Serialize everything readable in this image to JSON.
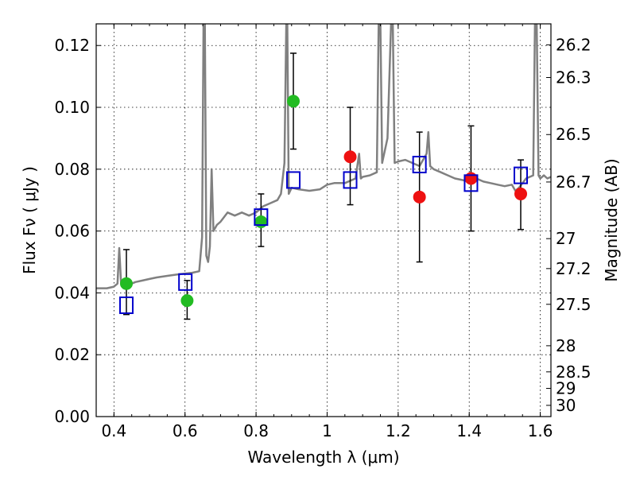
{
  "chart_data": {
    "type": "scatter",
    "title": "",
    "xlabel": "Wavelength  λ (μm)",
    "ylabel": "Flux  Fν  ( μJy )",
    "ylabel_right": "Magnitude (AB)",
    "xlim": [
      0.35,
      1.63
    ],
    "ylim": [
      0.0,
      0.127
    ],
    "grid": true,
    "x_ticks": [
      {
        "value": 0.4,
        "label": "0.4"
      },
      {
        "value": 0.6,
        "label": "0.6"
      },
      {
        "value": 0.8,
        "label": "0.8"
      },
      {
        "value": 1.0,
        "label": "1"
      },
      {
        "value": 1.2,
        "label": "1.2"
      },
      {
        "value": 1.4,
        "label": "1.4"
      },
      {
        "value": 1.6,
        "label": "1.6"
      }
    ],
    "y_ticks": [
      {
        "value": 0.0,
        "label": "0.00"
      },
      {
        "value": 0.02,
        "label": "0.02"
      },
      {
        "value": 0.04,
        "label": "0.04"
      },
      {
        "value": 0.06,
        "label": "0.06"
      },
      {
        "value": 0.08,
        "label": "0.08"
      },
      {
        "value": 0.1,
        "label": "0.10"
      },
      {
        "value": 0.12,
        "label": "0.12"
      }
    ],
    "right_ticks": [
      {
        "value": 26.2,
        "label": "26.2"
      },
      {
        "value": 26.3,
        "label": "26.3"
      },
      {
        "value": 26.5,
        "label": "26.5"
      },
      {
        "value": 26.7,
        "label": "26.7"
      },
      {
        "value": 27.0,
        "label": "27"
      },
      {
        "value": 27.2,
        "label": "27.2"
      },
      {
        "value": 27.5,
        "label": "27.5"
      },
      {
        "value": 28.0,
        "label": "28"
      },
      {
        "value": 28.5,
        "label": "28.5"
      },
      {
        "value": 29.0,
        "label": "29"
      },
      {
        "value": 30.0,
        "label": "30"
      }
    ],
    "model_spectrum": {
      "color": "#808080",
      "points": [
        [
          0.35,
          0.0415
        ],
        [
          0.38,
          0.0415
        ],
        [
          0.4,
          0.042
        ],
        [
          0.41,
          0.043
        ],
        [
          0.415,
          0.0545
        ],
        [
          0.42,
          0.043
        ],
        [
          0.44,
          0.0425
        ],
        [
          0.46,
          0.0435
        ],
        [
          0.48,
          0.044
        ],
        [
          0.5,
          0.0445
        ],
        [
          0.52,
          0.045
        ],
        [
          0.55,
          0.0455
        ],
        [
          0.58,
          0.046
        ],
        [
          0.62,
          0.0465
        ],
        [
          0.64,
          0.047
        ],
        [
          0.648,
          0.058
        ],
        [
          0.652,
          0.127
        ],
        [
          0.656,
          0.127
        ],
        [
          0.66,
          0.052
        ],
        [
          0.665,
          0.05
        ],
        [
          0.67,
          0.055
        ],
        [
          0.675,
          0.08
        ],
        [
          0.68,
          0.06
        ],
        [
          0.69,
          0.062
        ],
        [
          0.7,
          0.063
        ],
        [
          0.72,
          0.066
        ],
        [
          0.74,
          0.065
        ],
        [
          0.76,
          0.066
        ],
        [
          0.78,
          0.065
        ],
        [
          0.8,
          0.066
        ],
        [
          0.82,
          0.068
        ],
        [
          0.84,
          0.069
        ],
        [
          0.86,
          0.07
        ],
        [
          0.87,
          0.072
        ],
        [
          0.88,
          0.082
        ],
        [
          0.885,
          0.127
        ],
        [
          0.888,
          0.127
        ],
        [
          0.892,
          0.072
        ],
        [
          0.9,
          0.074
        ],
        [
          0.92,
          0.0735
        ],
        [
          0.95,
          0.073
        ],
        [
          0.98,
          0.0735
        ],
        [
          1.0,
          0.075
        ],
        [
          1.02,
          0.0755
        ],
        [
          1.05,
          0.0755
        ],
        [
          1.08,
          0.077
        ],
        [
          1.09,
          0.085
        ],
        [
          1.095,
          0.077
        ],
        [
          1.1,
          0.0775
        ],
        [
          1.12,
          0.078
        ],
        [
          1.14,
          0.079
        ],
        [
          1.145,
          0.127
        ],
        [
          1.15,
          0.127
        ],
        [
          1.155,
          0.082
        ],
        [
          1.17,
          0.09
        ],
        [
          1.18,
          0.127
        ],
        [
          1.185,
          0.127
        ],
        [
          1.19,
          0.082
        ],
        [
          1.2,
          0.0825
        ],
        [
          1.22,
          0.083
        ],
        [
          1.24,
          0.082
        ],
        [
          1.26,
          0.081
        ],
        [
          1.28,
          0.085
        ],
        [
          1.285,
          0.092
        ],
        [
          1.29,
          0.081
        ],
        [
          1.3,
          0.08
        ],
        [
          1.32,
          0.079
        ],
        [
          1.34,
          0.078
        ],
        [
          1.36,
          0.077
        ],
        [
          1.38,
          0.0765
        ],
        [
          1.4,
          0.076
        ],
        [
          1.42,
          0.077
        ],
        [
          1.44,
          0.076
        ],
        [
          1.46,
          0.0755
        ],
        [
          1.48,
          0.075
        ],
        [
          1.5,
          0.0745
        ],
        [
          1.52,
          0.075
        ],
        [
          1.53,
          0.073
        ],
        [
          1.54,
          0.074
        ],
        [
          1.55,
          0.0755
        ],
        [
          1.56,
          0.077
        ],
        [
          1.58,
          0.078
        ],
        [
          1.585,
          0.127
        ],
        [
          1.59,
          0.127
        ],
        [
          1.595,
          0.078
        ],
        [
          1.6,
          0.077
        ],
        [
          1.61,
          0.078
        ],
        [
          1.62,
          0.077
        ],
        [
          1.63,
          0.0775
        ]
      ]
    },
    "series": [
      {
        "marker": "circle",
        "color": "#22bb22",
        "points": [
          {
            "x": 0.435,
            "y": 0.043,
            "err_low": 0.01,
            "err_high": 0.011
          },
          {
            "x": 0.606,
            "y": 0.0375,
            "err_low": 0.006,
            "err_high": 0.0065
          },
          {
            "x": 0.814,
            "y": 0.063,
            "err_low": 0.008,
            "err_high": 0.009
          },
          {
            "x": 0.905,
            "y": 0.102,
            "err_low": 0.0155,
            "err_high": 0.0155
          }
        ]
      },
      {
        "marker": "circle",
        "color": "#ee1111",
        "points": [
          {
            "x": 1.065,
            "y": 0.084,
            "err_low": 0.0155,
            "err_high": 0.016
          },
          {
            "x": 1.26,
            "y": 0.071,
            "err_low": 0.021,
            "err_high": 0.021
          },
          {
            "x": 1.405,
            "y": 0.077,
            "err_low": 0.017,
            "err_high": 0.017
          },
          {
            "x": 1.545,
            "y": 0.072,
            "err_low": 0.0115,
            "err_high": 0.011
          }
        ]
      },
      {
        "marker": "square",
        "color": "#0000cc",
        "points": [
          {
            "x": 0.435,
            "y": 0.036
          },
          {
            "x": 0.601,
            "y": 0.0435
          },
          {
            "x": 0.814,
            "y": 0.0645
          },
          {
            "x": 0.905,
            "y": 0.0765
          },
          {
            "x": 1.065,
            "y": 0.0765
          },
          {
            "x": 1.26,
            "y": 0.0815
          },
          {
            "x": 1.405,
            "y": 0.0755
          },
          {
            "x": 1.545,
            "y": 0.078
          }
        ]
      }
    ]
  }
}
